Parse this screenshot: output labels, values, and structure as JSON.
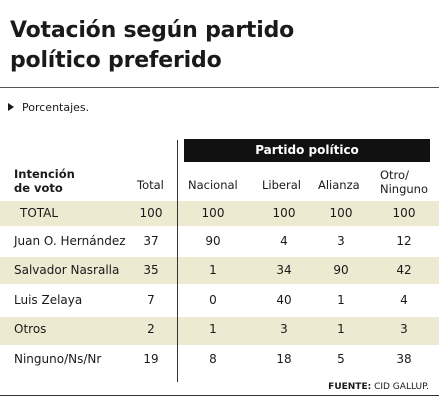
{
  "title_line1": "Votación según partido",
  "title_line2": "político preferido",
  "subtitle": "Porcentajes.",
  "source_label": "FUENTE:",
  "source_value": "CID GALLUP.",
  "chart_data": {
    "type": "table",
    "group_header": "Partido político",
    "row_header_line1": "Intención",
    "row_header_line2": "de voto",
    "columns": [
      {
        "label": "Total"
      },
      {
        "label": "Nacional"
      },
      {
        "label": "Liberal"
      },
      {
        "label": "Alianza"
      },
      {
        "label_line1": "Otro/",
        "label_line2": "Ninguno"
      }
    ],
    "rows": [
      {
        "label": "TOTAL",
        "values": [
          "100",
          "100",
          "100",
          "100",
          "100"
        ]
      },
      {
        "label": "Juan O. Hernández",
        "values": [
          "37",
          "90",
          "4",
          "3",
          "12"
        ]
      },
      {
        "label": "Salvador Nasralla",
        "values": [
          "35",
          "1",
          "34",
          "90",
          "42"
        ]
      },
      {
        "label": "Luis Zelaya",
        "values": [
          "7",
          "0",
          "40",
          "1",
          "4"
        ]
      },
      {
        "label": "Otros",
        "values": [
          "2",
          "1",
          "3",
          "1",
          "3"
        ]
      },
      {
        "label": "Ninguno/Ns/Nr",
        "values": [
          "19",
          "8",
          "18",
          "5",
          "38"
        ]
      }
    ],
    "banded_rows": [
      0,
      2,
      4
    ],
    "band_color": "#eee9d1",
    "header_bar_color": "#111111"
  }
}
